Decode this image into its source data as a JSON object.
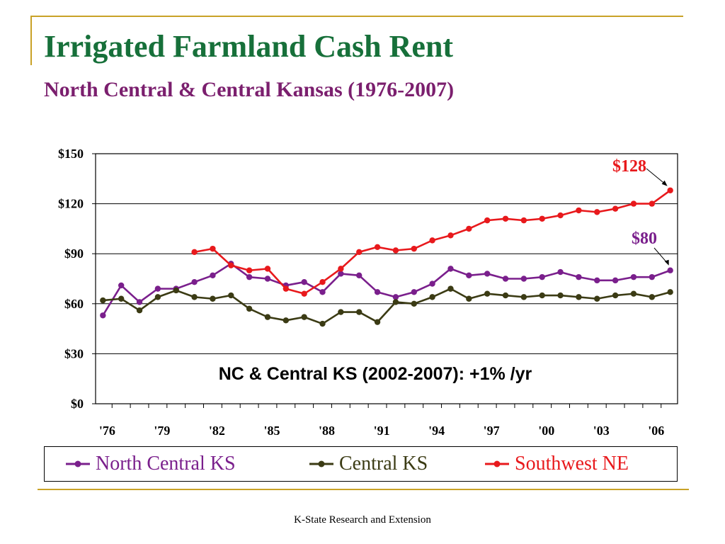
{
  "slide": {
    "title": "Irrigated Farmland Cash Rent",
    "subtitle": "North Central & Central Kansas (1976-2007)",
    "footer": "K-State Research and Extension"
  },
  "colors": {
    "title": "#17703a",
    "subtitle": "#7b1f6e",
    "decoration": "#c9a227"
  },
  "chart_data": {
    "type": "line",
    "title": "",
    "xlabel": "",
    "ylabel": "",
    "x": [
      1976,
      1977,
      1978,
      1979,
      1980,
      1981,
      1982,
      1983,
      1984,
      1985,
      1986,
      1987,
      1988,
      1989,
      1990,
      1991,
      1992,
      1993,
      1994,
      1995,
      1996,
      1997,
      1998,
      1999,
      2000,
      2001,
      2002,
      2003,
      2004,
      2005,
      2006,
      2007
    ],
    "x_tick_labels": [
      "'76",
      "'79",
      "'82",
      "'85",
      "'88",
      "'91",
      "'94",
      "'97",
      "'00",
      "'03",
      "'06"
    ],
    "x_tick_years": [
      1976,
      1979,
      1982,
      1985,
      1988,
      1991,
      1994,
      1997,
      2000,
      2003,
      2006
    ],
    "xlim": [
      1975.6,
      2007.4
    ],
    "y_tick_labels": [
      "$0",
      "$30",
      "$60",
      "$90",
      "$120",
      "$150"
    ],
    "y_ticks": [
      0,
      30,
      60,
      90,
      120,
      150
    ],
    "ylim": [
      0,
      150
    ],
    "grid": "horizontal",
    "legend": "bottom",
    "series": [
      {
        "name": "North Central KS",
        "color": "#7a1f8c",
        "values": [
          53,
          71,
          61,
          69,
          69,
          73,
          77,
          84,
          76,
          75,
          71,
          73,
          67,
          78,
          77,
          67,
          64,
          67,
          72,
          81,
          77,
          78,
          75,
          75,
          76,
          79,
          76,
          74,
          74,
          76,
          76,
          80
        ]
      },
      {
        "name": "Central KS",
        "color": "#3b3b14",
        "values": [
          62,
          63,
          56,
          64,
          68,
          64,
          63,
          65,
          57,
          52,
          50,
          52,
          48,
          55,
          55,
          49,
          61,
          60,
          64,
          69,
          63,
          66,
          65,
          64,
          65,
          65,
          64,
          63,
          65,
          66,
          64,
          67
        ]
      },
      {
        "name": "Southwest NE",
        "color": "#e8191c",
        "values": [
          null,
          null,
          null,
          null,
          null,
          91,
          93,
          83,
          80,
          81,
          69,
          66,
          73,
          81,
          91,
          94,
          92,
          93,
          98,
          101,
          105,
          110,
          111,
          110,
          111,
          113,
          116,
          115,
          117,
          120,
          120,
          128
        ]
      }
    ],
    "annotations": [
      {
        "text": "$128",
        "color": "#e8191c",
        "points_to": {
          "x": 2007,
          "y": 128
        }
      },
      {
        "text": "$80",
        "color": "#7a1f8c",
        "points_to": {
          "x": 2007,
          "y": 80
        }
      },
      {
        "text": "NC & Central KS (2002-2007): +1% /yr",
        "color": "#000000"
      }
    ]
  }
}
